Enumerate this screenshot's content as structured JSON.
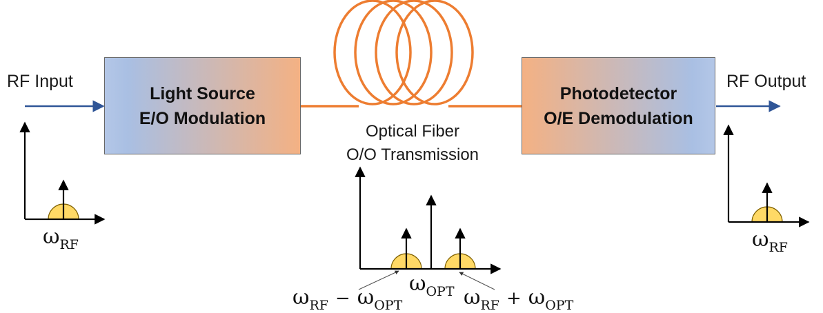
{
  "labels": {
    "rf_input": "RF Input",
    "rf_output": "RF Output"
  },
  "blocks": {
    "source_line1": "Light Source",
    "source_line2": "E/O Modulation",
    "detector_line1": "Photodetector",
    "detector_line2": "O/E Demodulation"
  },
  "fiber": {
    "line1": "Optical Fiber",
    "line2": "O/O Transmission"
  },
  "spectrum": {
    "omega": "ω",
    "rf": "RF",
    "opt": "OPT",
    "minus": "−",
    "plus": "+"
  },
  "colors": {
    "arrow_blue": "#2f5597",
    "fiber_orange": "#ed7d31",
    "peak_yellow": "#ffd966",
    "box_blue": "#b4c7e7",
    "box_orange": "#f4b183"
  }
}
